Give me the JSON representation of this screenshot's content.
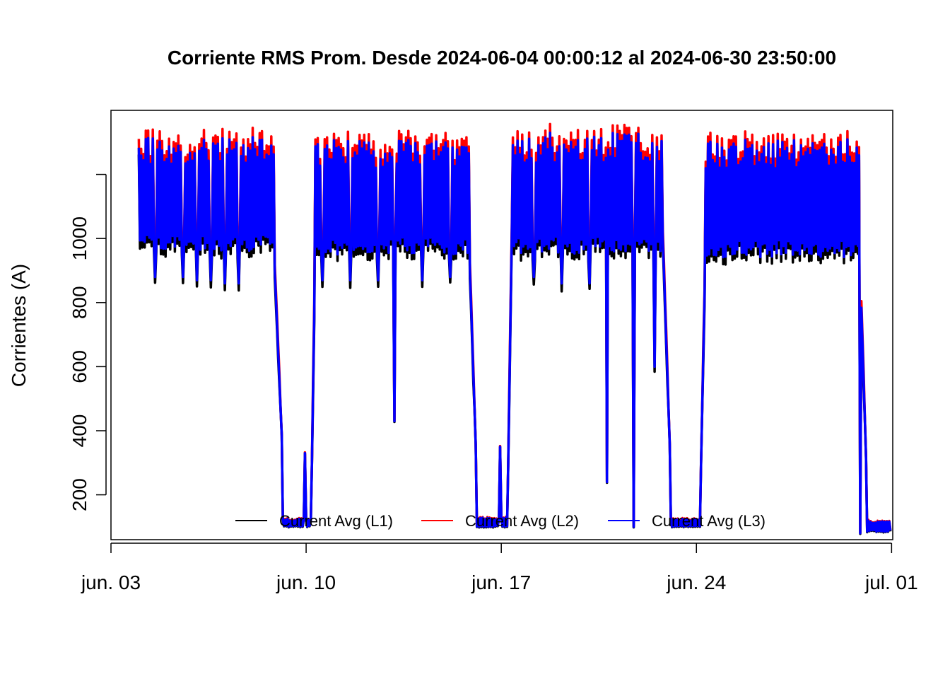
{
  "chart_data": {
    "type": "line",
    "title": "Corriente RMS Prom. Desde  2024-06-04 00:00:12  al  2024-06-30 23:50:00",
    "xlabel": "",
    "ylabel": "Corrientes (A)",
    "x_range": [
      "2024-06-03T00:00",
      "2024-07-01T01:00"
    ],
    "ylim": [
      60,
      1400
    ],
    "x_ticks": [
      {
        "label": "jun. 03",
        "date": "2024-06-03T00:00"
      },
      {
        "label": "jun. 10",
        "date": "2024-06-10T00:00"
      },
      {
        "label": "jun. 17",
        "date": "2024-06-17T00:00"
      },
      {
        "label": "jun. 24",
        "date": "2024-06-24T00:00"
      },
      {
        "label": "jul. 01",
        "date": "2024-07-01T00:00"
      }
    ],
    "y_ticks": [
      {
        "label": "",
        "value": 1200
      },
      {
        "label": "1000",
        "value": 1000
      },
      {
        "label": "800",
        "value": 800
      },
      {
        "label": "600",
        "value": 600
      },
      {
        "label": "400",
        "value": 400
      },
      {
        "label": "200",
        "value": 200
      }
    ],
    "grid": false,
    "legend": {
      "placement": "bottom-center",
      "orientation": "horizontal"
    },
    "segments": [
      {
        "start": "2024-06-04T00:00",
        "end": "2024-06-04T07:00",
        "type": "active",
        "low": 980,
        "high": 1330
      },
      {
        "start": "2024-06-04T07:00",
        "end": "2024-06-08T21:00",
        "type": "active",
        "low": 960,
        "high": 1320
      },
      {
        "start": "2024-06-08T21:00",
        "end": "2024-06-09T04:00",
        "type": "transition",
        "from": 900,
        "to": 300
      },
      {
        "start": "2024-06-09T04:00",
        "end": "2024-06-10T05:00",
        "type": "idle",
        "low": 100,
        "high": 125
      },
      {
        "start": "2024-06-10T05:00",
        "end": "2024-06-10T08:00",
        "type": "transition",
        "from": 300,
        "to": 1000
      },
      {
        "start": "2024-06-10T08:00",
        "end": "2024-06-15T21:00",
        "type": "active",
        "low": 950,
        "high": 1310
      },
      {
        "start": "2024-06-15T21:00",
        "end": "2024-06-16T03:00",
        "type": "transition",
        "from": 900,
        "to": 250
      },
      {
        "start": "2024-06-16T03:00",
        "end": "2024-06-17T06:00",
        "type": "idle",
        "low": 100,
        "high": 130
      },
      {
        "start": "2024-06-17T06:00",
        "end": "2024-06-17T09:00",
        "type": "transition",
        "from": 300,
        "to": 1000
      },
      {
        "start": "2024-06-17T09:00",
        "end": "2024-06-22T20:00",
        "type": "active",
        "low": 950,
        "high": 1330
      },
      {
        "start": "2024-06-22T20:00",
        "end": "2024-06-23T02:00",
        "type": "transition",
        "from": 900,
        "to": 250
      },
      {
        "start": "2024-06-23T02:00",
        "end": "2024-06-24T04:00",
        "type": "idle",
        "low": 100,
        "high": 125
      },
      {
        "start": "2024-06-24T04:00",
        "end": "2024-06-24T08:00",
        "type": "transition",
        "from": 300,
        "to": 1000
      },
      {
        "start": "2024-06-24T08:00",
        "end": "2024-06-29T21:00",
        "type": "active",
        "low": 940,
        "high": 1310
      },
      {
        "start": "2024-06-29T21:00",
        "end": "2024-06-30T03:00",
        "type": "transition",
        "from": 900,
        "to": 200
      },
      {
        "start": "2024-06-30T03:00",
        "end": "2024-06-30T23:50",
        "type": "idle",
        "low": 85,
        "high": 120
      }
    ],
    "dips": [
      {
        "date": "2024-06-04T14:00",
        "value": 880
      },
      {
        "date": "2024-06-05T14:00",
        "value": 880
      },
      {
        "date": "2024-06-06T02:00",
        "value": 870
      },
      {
        "date": "2024-06-06T14:00",
        "value": 870
      },
      {
        "date": "2024-06-07T02:00",
        "value": 860
      },
      {
        "date": "2024-06-07T14:00",
        "value": 860
      },
      {
        "date": "2024-06-09T23:00",
        "value": 330
      },
      {
        "date": "2024-06-10T14:00",
        "value": 870
      },
      {
        "date": "2024-06-11T14:00",
        "value": 870
      },
      {
        "date": "2024-06-12T14:00",
        "value": 870
      },
      {
        "date": "2024-06-13T04:00",
        "value": 430
      },
      {
        "date": "2024-06-14T04:00",
        "value": 870
      },
      {
        "date": "2024-06-15T04:00",
        "value": 880
      },
      {
        "date": "2024-06-16T23:00",
        "value": 350
      },
      {
        "date": "2024-06-18T04:00",
        "value": 880
      },
      {
        "date": "2024-06-19T04:00",
        "value": 860
      },
      {
        "date": "2024-06-20T04:00",
        "value": 860
      },
      {
        "date": "2024-06-20T19:00",
        "value": 240
      },
      {
        "date": "2024-06-21T18:00",
        "value": 100
      },
      {
        "date": "2024-06-22T12:00",
        "value": 600
      },
      {
        "date": "2024-06-29T21:00",
        "value": 80
      }
    ],
    "series": [
      {
        "name": "Current Avg (L1)",
        "color": "#000000",
        "offset": -20
      },
      {
        "name": "Current Avg (L2)",
        "color": "#ff0000",
        "offset": 25
      },
      {
        "name": "Current Avg (L3)",
        "color": "#0000ff",
        "offset": 0
      }
    ]
  }
}
